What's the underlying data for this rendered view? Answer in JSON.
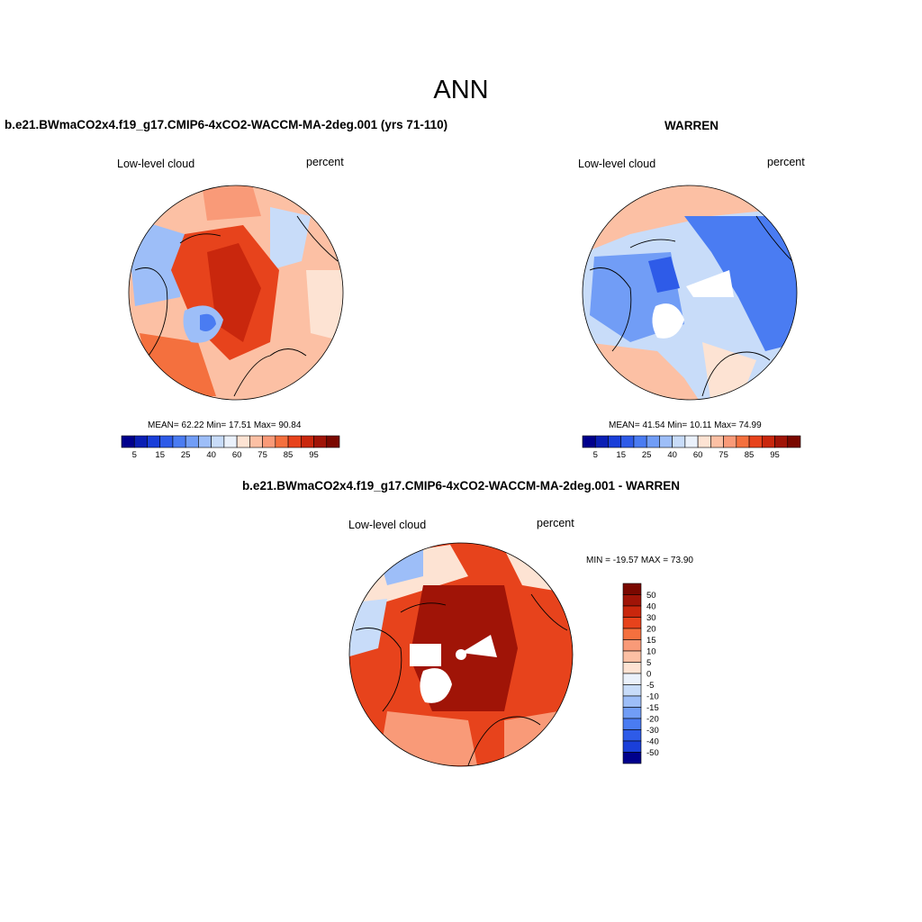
{
  "page": {
    "main_title": "ANN",
    "panel_left": {
      "title": "b.e21.BWmaCO2x4.f19_g17.CMIP6-4xCO2-WACCM-MA-2deg.001 (yrs 71-110)",
      "variable": "Low-level cloud",
      "units": "percent",
      "stats": "MEAN=  62.22  Min=  17.51  Max=  90.84"
    },
    "panel_right": {
      "title": "WARREN",
      "variable": "Low-level cloud",
      "units": "percent",
      "stats": "MEAN=  41.54  Min=  10.11  Max=  74.99"
    },
    "panel_bottom": {
      "title": "b.e21.BWmaCO2x4.f19_g17.CMIP6-4xCO2-WACCM-MA-2deg.001 - WARREN",
      "variable": "Low-level cloud",
      "units": "percent",
      "stats": "MIN = -19.57 MAX =  73.90"
    }
  },
  "chart_data": [
    {
      "type": "heatmap",
      "projection": "north polar stereographic",
      "title": "b.e21.BWmaCO2x4.f19_g17.CMIP6-4xCO2-WACCM-MA-2deg.001 (yrs 71-110)",
      "field": "Low-level cloud",
      "units": "percent",
      "mean": 62.22,
      "min": 17.51,
      "max": 90.84,
      "colorbar": {
        "levels": [
          5,
          10,
          15,
          20,
          25,
          30,
          40,
          50,
          60,
          70,
          75,
          80,
          85,
          90,
          95
        ],
        "tick_labels": [
          "5",
          "15",
          "25",
          "40",
          "60",
          "75",
          "85",
          "95"
        ],
        "colors": [
          "#00008c",
          "#0a1fb4",
          "#1a3fd9",
          "#2e5be8",
          "#4a7cf2",
          "#719df6",
          "#9dbef8",
          "#c8dcf9",
          "#eaf1fb",
          "#fde3d3",
          "#fcc0a4",
          "#f99a78",
          "#f4703e",
          "#e7431c",
          "#c9270d",
          "#a01407",
          "#7a0800"
        ]
      }
    },
    {
      "type": "heatmap",
      "projection": "north polar stereographic",
      "title": "WARREN",
      "field": "Low-level cloud",
      "units": "percent",
      "mean": 41.54,
      "min": 10.11,
      "max": 74.99,
      "colorbar": {
        "levels": [
          5,
          10,
          15,
          20,
          25,
          30,
          40,
          50,
          60,
          70,
          75,
          80,
          85,
          90,
          95
        ],
        "tick_labels": [
          "5",
          "15",
          "25",
          "40",
          "60",
          "75",
          "85",
          "95"
        ],
        "colors": [
          "#00008c",
          "#0a1fb4",
          "#1a3fd9",
          "#2e5be8",
          "#4a7cf2",
          "#719df6",
          "#9dbef8",
          "#c8dcf9",
          "#eaf1fb",
          "#fde3d3",
          "#fcc0a4",
          "#f99a78",
          "#f4703e",
          "#e7431c",
          "#c9270d",
          "#a01407",
          "#7a0800"
        ]
      }
    },
    {
      "type": "heatmap",
      "projection": "north polar stereographic",
      "title": "b.e21.BWmaCO2x4.f19_g17.CMIP6-4xCO2-WACCM-MA-2deg.001 - WARREN",
      "field": "Low-level cloud",
      "units": "percent",
      "min": -19.57,
      "max": 73.9,
      "colorbar": {
        "orientation": "vertical",
        "levels": [
          50,
          40,
          30,
          20,
          15,
          10,
          5,
          0,
          -5,
          -10,
          -15,
          -20,
          -30,
          -40,
          -50
        ],
        "tick_labels": [
          "50",
          "40",
          "30",
          "20",
          "15",
          "10",
          "5",
          "0",
          "-5",
          "-10",
          "-15",
          "-20",
          "-30",
          "-40",
          "-50"
        ],
        "colors": [
          "#7a0800",
          "#a01407",
          "#c9270d",
          "#e7431c",
          "#f4703e",
          "#f99a78",
          "#fcc0a4",
          "#fde3d3",
          "#eaf1fb",
          "#c8dcf9",
          "#9dbef8",
          "#719df6",
          "#4a7cf2",
          "#2e5be8",
          "#1a3fd9",
          "#00008c"
        ]
      }
    }
  ]
}
